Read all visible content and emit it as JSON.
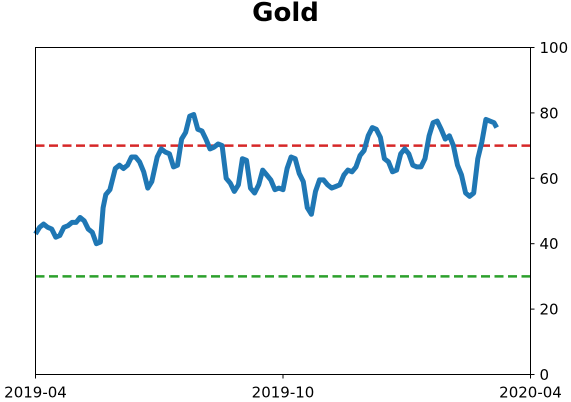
{
  "chart_data": {
    "type": "line",
    "title": "Gold",
    "xlabel": "",
    "ylabel": "",
    "x_range": [
      "2019-04-01",
      "2020-04-01"
    ],
    "ylim": [
      0,
      100
    ],
    "y_axis_side": "right",
    "yticks": [
      0,
      20,
      40,
      60,
      80,
      100
    ],
    "xticks": [
      {
        "date": "2019-04-01",
        "label": "2019-04"
      },
      {
        "date": "2019-10-01",
        "label": "2019-10"
      },
      {
        "date": "2020-04-01",
        "label": "2020-04"
      }
    ],
    "grid": false,
    "reference_lines": [
      {
        "y": 70,
        "color": "#d62728",
        "style": "dashed"
      },
      {
        "y": 30,
        "color": "#2ca02c",
        "style": "dashed"
      }
    ],
    "series": [
      {
        "color": "#1f77b4",
        "points": [
          [
            "2019-04-01",
            43
          ],
          [
            "2019-04-04",
            45
          ],
          [
            "2019-04-07",
            46
          ],
          [
            "2019-04-10",
            45
          ],
          [
            "2019-04-13",
            44.5
          ],
          [
            "2019-04-16",
            42
          ],
          [
            "2019-04-19",
            42.5
          ],
          [
            "2019-04-22",
            45
          ],
          [
            "2019-04-25",
            45.5
          ],
          [
            "2019-04-28",
            46.5
          ],
          [
            "2019-05-01",
            46.5
          ],
          [
            "2019-05-04",
            48
          ],
          [
            "2019-05-07",
            47
          ],
          [
            "2019-05-10",
            44.5
          ],
          [
            "2019-05-13",
            43.5
          ],
          [
            "2019-05-16",
            40
          ],
          [
            "2019-05-19",
            40.5
          ],
          [
            "2019-05-21",
            51
          ],
          [
            "2019-05-23",
            55
          ],
          [
            "2019-05-26",
            56.5
          ],
          [
            "2019-05-30",
            63
          ],
          [
            "2019-06-02",
            64
          ],
          [
            "2019-06-05",
            63
          ],
          [
            "2019-06-08",
            64
          ],
          [
            "2019-06-11",
            66.5
          ],
          [
            "2019-06-14",
            66.5
          ],
          [
            "2019-06-17",
            65
          ],
          [
            "2019-06-20",
            62
          ],
          [
            "2019-06-23",
            57
          ],
          [
            "2019-06-26",
            59
          ],
          [
            "2019-06-30",
            66.5
          ],
          [
            "2019-07-03",
            69
          ],
          [
            "2019-07-06",
            68
          ],
          [
            "2019-07-09",
            67.5
          ],
          [
            "2019-07-12",
            63.5
          ],
          [
            "2019-07-15",
            64
          ],
          [
            "2019-07-18",
            72
          ],
          [
            "2019-07-21",
            74
          ],
          [
            "2019-07-24",
            79
          ],
          [
            "2019-07-27",
            79.5
          ],
          [
            "2019-07-30",
            75
          ],
          [
            "2019-08-02",
            74.5
          ],
          [
            "2019-08-05",
            72
          ],
          [
            "2019-08-08",
            69
          ],
          [
            "2019-08-11",
            69.5
          ],
          [
            "2019-08-14",
            70.5
          ],
          [
            "2019-08-17",
            70
          ],
          [
            "2019-08-20",
            60
          ],
          [
            "2019-08-23",
            58.5
          ],
          [
            "2019-08-26",
            56
          ],
          [
            "2019-08-29",
            58
          ],
          [
            "2019-09-01",
            66
          ],
          [
            "2019-09-04",
            65.5
          ],
          [
            "2019-09-07",
            57
          ],
          [
            "2019-09-10",
            55.5
          ],
          [
            "2019-09-13",
            58
          ],
          [
            "2019-09-16",
            62.5
          ],
          [
            "2019-09-19",
            61
          ],
          [
            "2019-09-22",
            59.5
          ],
          [
            "2019-09-25",
            56.5
          ],
          [
            "2019-09-28",
            57
          ],
          [
            "2019-10-01",
            56.5
          ],
          [
            "2019-10-04",
            63
          ],
          [
            "2019-10-07",
            66.5
          ],
          [
            "2019-10-10",
            66
          ],
          [
            "2019-10-13",
            61.5
          ],
          [
            "2019-10-16",
            59
          ],
          [
            "2019-10-19",
            51
          ],
          [
            "2019-10-22",
            49
          ],
          [
            "2019-10-25",
            56
          ],
          [
            "2019-10-28",
            59.5
          ],
          [
            "2019-10-31",
            59.5
          ],
          [
            "2019-11-03",
            58
          ],
          [
            "2019-11-06",
            57
          ],
          [
            "2019-11-09",
            57.5
          ],
          [
            "2019-11-12",
            58
          ],
          [
            "2019-11-15",
            61
          ],
          [
            "2019-11-18",
            62.5
          ],
          [
            "2019-11-21",
            62
          ],
          [
            "2019-11-24",
            63.5
          ],
          [
            "2019-11-27",
            67
          ],
          [
            "2019-11-30",
            68.5
          ],
          [
            "2019-12-03",
            73
          ],
          [
            "2019-12-06",
            75.5
          ],
          [
            "2019-12-09",
            75
          ],
          [
            "2019-12-12",
            72.5
          ],
          [
            "2019-12-15",
            66
          ],
          [
            "2019-12-18",
            65
          ],
          [
            "2019-12-21",
            62
          ],
          [
            "2019-12-24",
            62.5
          ],
          [
            "2019-12-27",
            67.5
          ],
          [
            "2019-12-30",
            69
          ],
          [
            "2020-01-02",
            67.5
          ],
          [
            "2020-01-05",
            64
          ],
          [
            "2020-01-08",
            63.5
          ],
          [
            "2020-01-11",
            63.5
          ],
          [
            "2020-01-14",
            66
          ],
          [
            "2020-01-17",
            73
          ],
          [
            "2020-01-20",
            77
          ],
          [
            "2020-01-23",
            77.5
          ],
          [
            "2020-01-26",
            75
          ],
          [
            "2020-01-29",
            72
          ],
          [
            "2020-02-01",
            73
          ],
          [
            "2020-02-04",
            70
          ],
          [
            "2020-02-07",
            64
          ],
          [
            "2020-02-10",
            61
          ],
          [
            "2020-02-13",
            55.5
          ],
          [
            "2020-02-16",
            54.5
          ],
          [
            "2020-02-19",
            55.5
          ],
          [
            "2020-02-22",
            66
          ],
          [
            "2020-02-25",
            71
          ],
          [
            "2020-02-28",
            78
          ],
          [
            "2020-03-02",
            77.5
          ],
          [
            "2020-03-05",
            77
          ],
          [
            "2020-03-07",
            75.5
          ]
        ]
      }
    ]
  }
}
